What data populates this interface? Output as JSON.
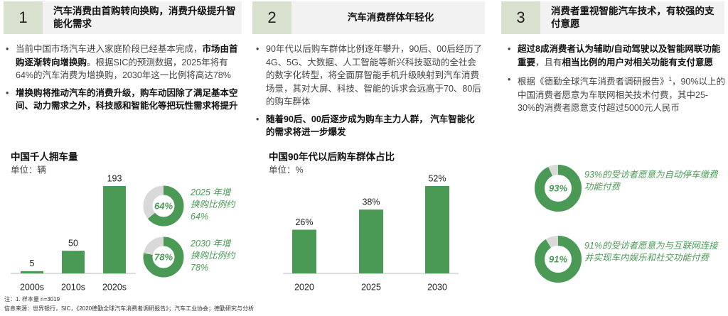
{
  "columns": [
    {
      "number": "1",
      "heading": "汽车消费由首购转向换购，消费升级提升智能化需求",
      "bullets": [
        {
          "parts": [
            "当前中国市场汽车进入家庭阶段已经基本完成，",
            "市场由首购逐渐转向增换购",
            "。根据SIC的预测数据，2025年将有 64%的汽车消费为增换购，2030年这一比例将高达78%"
          ],
          "styles": [
            "normal",
            "bold",
            "normal"
          ]
        },
        {
          "parts": [
            "增换购将推动汽车的消费升级，购车动因除了满足基本空间、动力需求之外，科技感和智能化等把玩性需求将提升"
          ],
          "styles": [
            "bold"
          ]
        }
      ],
      "chart": {
        "type": "bar",
        "title": "中国千人拥车量",
        "unit": "单位：辆",
        "categories": [
          "2000s",
          "2010s",
          "2020s"
        ],
        "values": [
          5,
          50,
          193
        ],
        "color": "#4a9a55"
      },
      "donuts": [
        {
          "value": 64,
          "value_label": "64%",
          "text": "2025 年增换购比例约64%",
          "color": "#4a9a55"
        },
        {
          "value": 78,
          "value_label": "78%",
          "text": "2030 年增换购比例约78%",
          "color": "#4a9a55"
        }
      ]
    },
    {
      "number": "2",
      "heading": "汽车消费群体年轻化",
      "bullets": [
        {
          "parts": [
            "90年代以后购车群体比例逐年攀升，90后、00后经历了4G、5G、大数据、人工智能等新兴科技驱动的全社会的数字化转型，将全面屏智能手机升级映射到汽车消费场景，其对大屏、科技、智能的诉求会远高于70、80后的购车群体"
          ],
          "styles": [
            "normal"
          ]
        },
        {
          "parts": [
            "随着90后、00后逐步成为购车主力人群， 汽车智能化的需求将进一步爆发"
          ],
          "styles": [
            "bold"
          ]
        }
      ],
      "chart": {
        "type": "bar",
        "title": "中国90年代以后购车群体占比",
        "unit": "单位：%",
        "categories": [
          "2020",
          "2025",
          "2030"
        ],
        "values": [
          26,
          38,
          52
        ],
        "value_labels": [
          "26%",
          "38%",
          "52%"
        ],
        "color": "#4a9a55"
      },
      "donuts": []
    },
    {
      "number": "3",
      "heading": "消费者重视智能汽车技术，有较强的支付意愿",
      "bullets": [
        {
          "parts": [
            "超过8成消费者认为辅助/自动驾驶以及智能网联功能重要",
            "，且有",
            "相当比例的用户对相关功能有支付意愿"
          ],
          "styles": [
            "bold",
            "normal",
            "bold"
          ]
        },
        {
          "parts": [
            "根据《德勤全球汽车消费者调研报告》",
            "1",
            "，90%以上的中国消费者愿意为车联网相关技术付费，其中25-30%的消费者愿意支付超过5000元人民币"
          ],
          "styles": [
            "normal",
            "sup",
            "normal"
          ]
        }
      ],
      "donuts": [
        {
          "value": 93,
          "value_label": "93%",
          "text": "93%的受访者愿意为自动停车缴费功能付费",
          "color": "#4a9a55"
        },
        {
          "value": 91,
          "value_label": "91%",
          "text": "91%的受访者愿意为与互联网连接并实现车内娱乐和社交功能付费",
          "color": "#4a9a55"
        }
      ]
    }
  ],
  "footer": {
    "note": "注：1. 样本量 n=3019",
    "source": "信息来源：世界银行，SIC，《2020德勤全球汽车消费者调研报告》；汽车工业协会；德勤研究与分析"
  }
}
